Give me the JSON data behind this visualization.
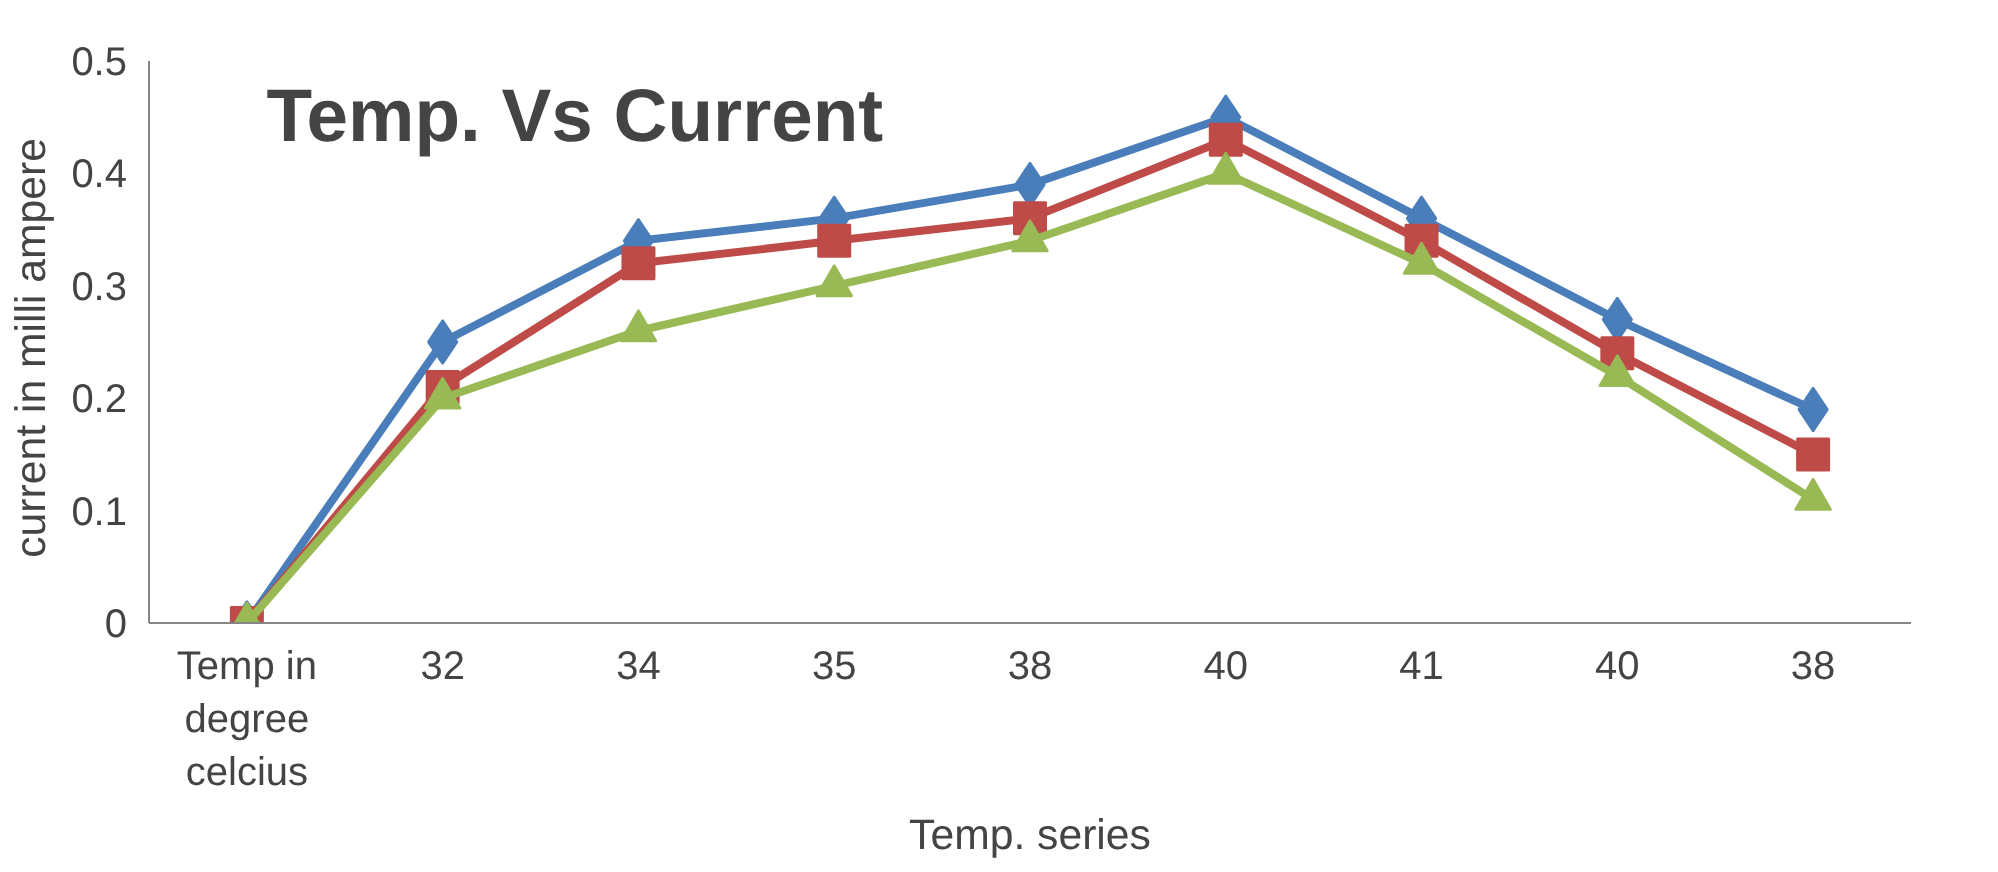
{
  "chart_data": {
    "type": "line",
    "title": "Temp. Vs Current",
    "xlabel": "Temp. series",
    "ylabel": "current  in milli ampere",
    "categories": [
      "Temp in degree celcius",
      "32",
      "34",
      "35",
      "38",
      "40",
      "41",
      "40",
      "38"
    ],
    "ylim": [
      0,
      0.5
    ],
    "yticks": [
      0,
      0.1,
      0.2,
      0.3,
      0.4,
      0.5
    ],
    "grid": false,
    "line_style": "solid",
    "series": [
      {
        "color": "#4a7ebb",
        "marker": "diamond",
        "values": [
          0,
          0.25,
          0.34,
          0.36,
          0.39,
          0.45,
          0.36,
          0.27,
          0.19
        ]
      },
      {
        "color": "#be4b48",
        "marker": "square",
        "values": [
          0,
          0.21,
          0.32,
          0.34,
          0.36,
          0.43,
          0.34,
          0.24,
          0.15
        ]
      },
      {
        "color": "#98b954",
        "marker": "triangle",
        "values": [
          0,
          0.2,
          0.26,
          0.3,
          0.34,
          0.4,
          0.32,
          0.22,
          0.11
        ]
      }
    ]
  }
}
